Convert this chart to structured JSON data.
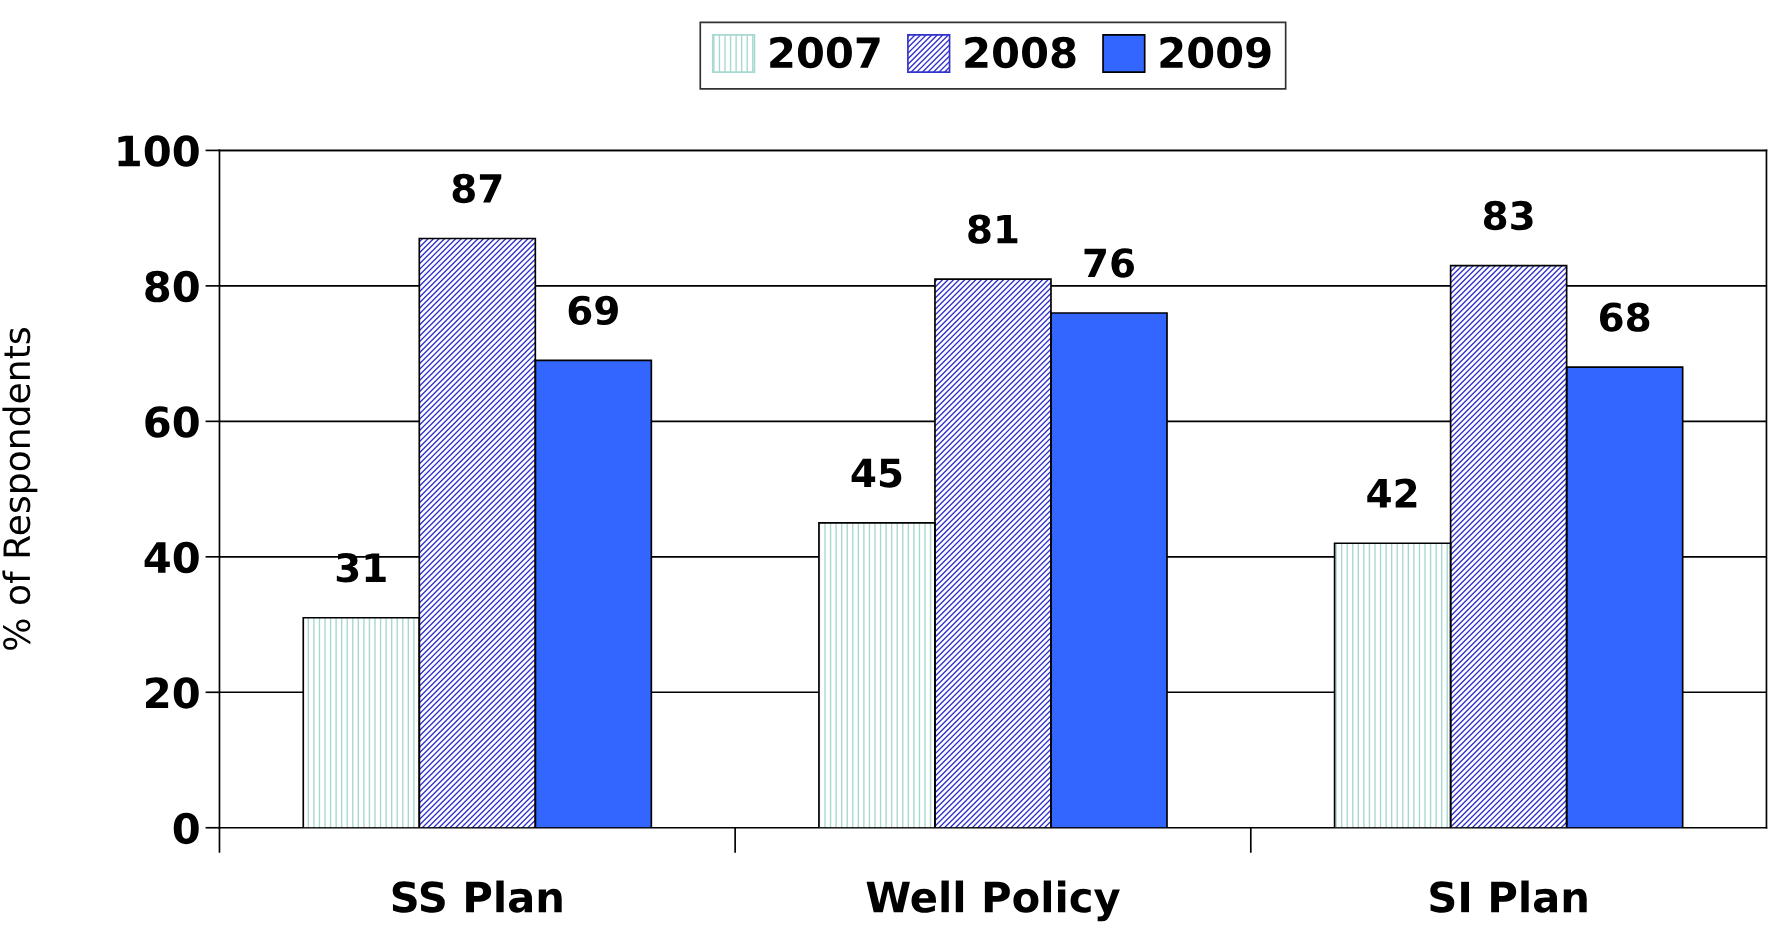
{
  "chart_data": {
    "type": "bar",
    "ylabel": "% of Respondents",
    "categories": [
      "SS Plan",
      "Well Policy",
      "SI Plan"
    ],
    "series": [
      {
        "name": "2007",
        "color": "#a8d8d0",
        "values": [
          31,
          45,
          42
        ]
      },
      {
        "name": "2008",
        "color": "#3333cc",
        "values": [
          87,
          81,
          83
        ]
      },
      {
        "name": "2009",
        "color": "#3366ff",
        "values": [
          69,
          76,
          68
        ]
      }
    ],
    "ylim": [
      0,
      100
    ],
    "yticks": [
      0,
      20,
      40,
      60,
      80,
      100
    ],
    "grid": "y",
    "legend": "top",
    "data_labels": true
  }
}
